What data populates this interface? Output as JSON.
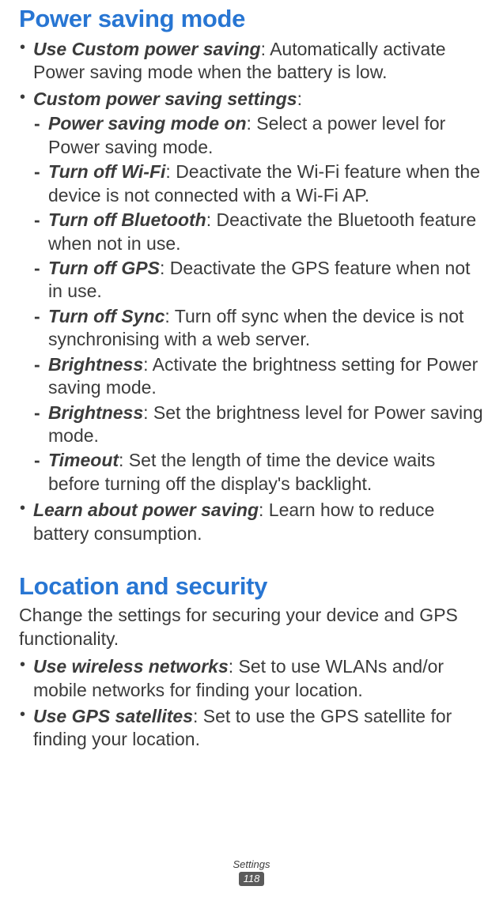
{
  "section1": {
    "title": "Power saving mode",
    "items": [
      {
        "term": "Use Custom power saving",
        "desc": ": Automatically activate Power saving mode when the battery is low."
      },
      {
        "term": "Custom power saving settings",
        "desc": ":",
        "sub": [
          {
            "term": "Power saving mode on",
            "desc": ": Select a power level for Power saving mode."
          },
          {
            "term": "Turn off Wi-Fi",
            "desc": ": Deactivate the Wi-Fi feature when the device is not connected with a Wi-Fi AP."
          },
          {
            "term": "Turn off Bluetooth",
            "desc": ": Deactivate the Bluetooth feature when not in use."
          },
          {
            "term": "Turn off GPS",
            "desc": ": Deactivate the GPS feature when not in use."
          },
          {
            "term": "Turn off Sync",
            "desc": ": Turn off sync when the device is not synchronising with a web server."
          },
          {
            "term": "Brightness",
            "desc": ": Activate the brightness setting for Power saving mode."
          },
          {
            "term": "Brightness",
            "desc": ": Set the brightness level for Power saving mode."
          },
          {
            "term": "Timeout",
            "desc": ": Set the length of time the device waits before turning off the display's backlight."
          }
        ]
      },
      {
        "term": "Learn about power saving",
        "desc": ": Learn how to reduce battery consumption."
      }
    ]
  },
  "section2": {
    "title": "Location and security",
    "intro": "Change the settings for securing your device and GPS functionality.",
    "items": [
      {
        "term": "Use wireless networks",
        "desc": ": Set to use WLANs and/or mobile networks for finding your location."
      },
      {
        "term": "Use GPS satellites",
        "desc": ": Set to use the GPS satellite for finding your location."
      }
    ]
  },
  "footer": {
    "label": "Settings",
    "page": "118"
  }
}
